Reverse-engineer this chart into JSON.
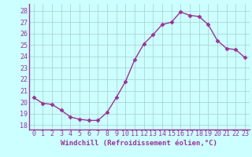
{
  "x": [
    0,
    1,
    2,
    3,
    4,
    5,
    6,
    7,
    8,
    9,
    10,
    11,
    12,
    13,
    14,
    15,
    16,
    17,
    18,
    19,
    20,
    21,
    22,
    23
  ],
  "y": [
    20.4,
    19.9,
    19.8,
    19.3,
    18.7,
    18.5,
    18.4,
    18.4,
    19.1,
    20.4,
    21.8,
    23.7,
    25.1,
    25.9,
    26.8,
    27.0,
    27.9,
    27.6,
    27.5,
    26.8,
    25.4,
    24.7,
    24.6,
    23.9
  ],
  "line_color": "#993399",
  "marker": "D",
  "marker_size": 2.5,
  "background_color": "#ccffff",
  "grid_color": "#aacccc",
  "xlabel": "Windchill (Refroidissement éolien,°C)",
  "xlabel_fontsize": 6.5,
  "xticks": [
    0,
    1,
    2,
    3,
    4,
    5,
    6,
    7,
    8,
    9,
    10,
    11,
    12,
    13,
    14,
    15,
    16,
    17,
    18,
    19,
    20,
    21,
    22,
    23
  ],
  "yticks": [
    18,
    19,
    20,
    21,
    22,
    23,
    24,
    25,
    26,
    27,
    28
  ],
  "ylim": [
    17.6,
    28.6
  ],
  "xlim": [
    -0.5,
    23.5
  ],
  "tick_fontsize": 6.0,
  "linewidth": 1.0,
  "spine_color": "#993399",
  "axis_color": "#993399"
}
